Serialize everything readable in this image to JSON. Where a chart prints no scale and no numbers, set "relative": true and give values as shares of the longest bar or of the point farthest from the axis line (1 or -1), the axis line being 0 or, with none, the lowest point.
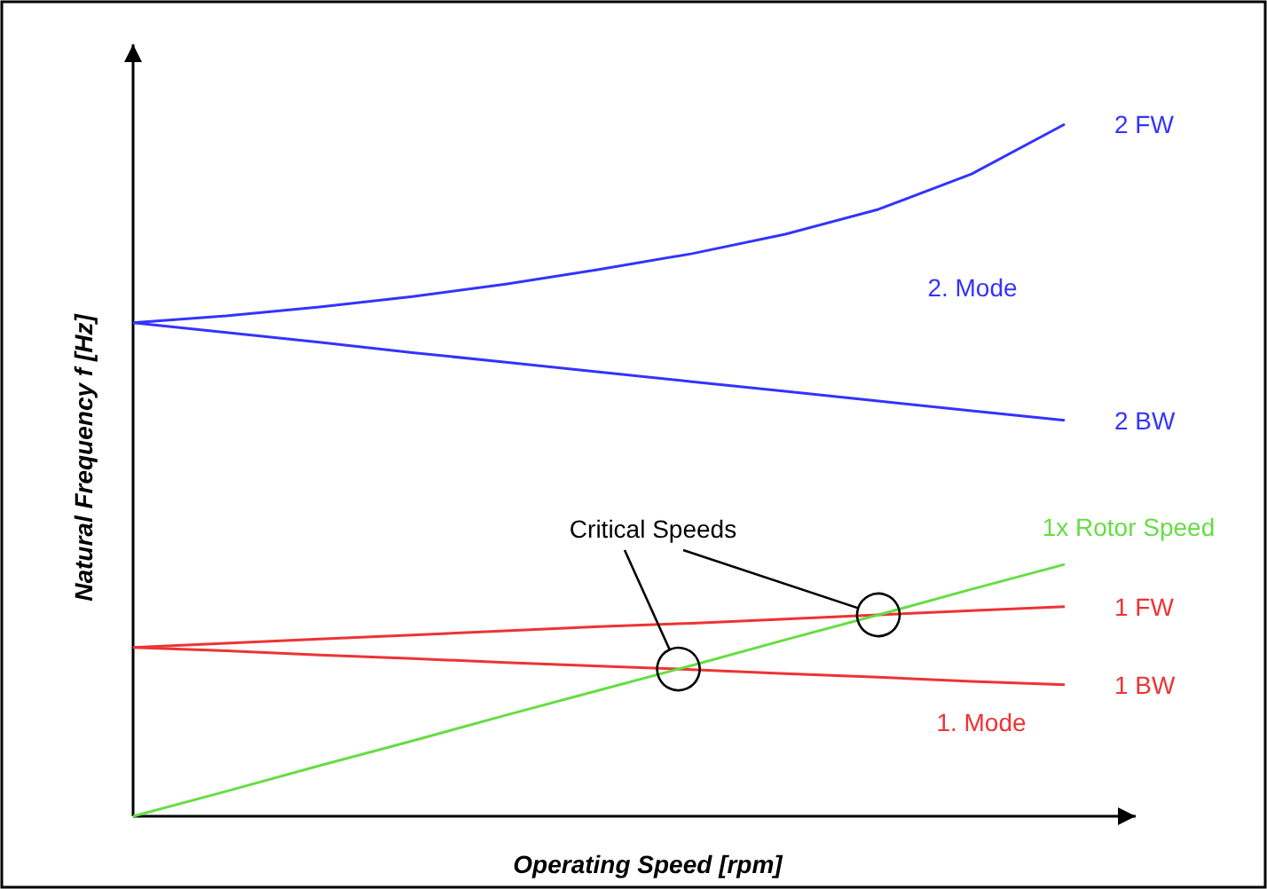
{
  "chart_data": {
    "type": "line",
    "relative": true,
    "xlabel": "Operating Speed  [rpm]",
    "ylabel": "Natural Frequency f  [Hz]",
    "categories": [
      null,
      null,
      null,
      null,
      null,
      null,
      null,
      null,
      null,
      null,
      null
    ],
    "marker": "none",
    "line_style": "solid",
    "series": [
      {
        "name": "2 FW",
        "color": "#3333ff",
        "values": [
          0.713,
          0.723,
          0.736,
          0.751,
          0.769,
          0.79,
          0.813,
          0.841,
          0.877,
          0.928,
          1
        ]
      },
      {
        "name": "2 BW",
        "color": "#3333ff",
        "values": [
          0.713,
          0.699,
          0.685,
          0.67,
          0.656,
          0.642,
          0.628,
          0.614,
          0.6,
          0.586,
          0.572
        ]
      },
      {
        "name": "1 FW",
        "color": "#ee3333",
        "values": [
          0.244,
          0.25,
          0.256,
          0.262,
          0.268,
          0.274,
          0.279,
          0.285,
          0.291,
          0.297,
          0.303
        ]
      },
      {
        "name": "1 BW",
        "color": "#ee3333",
        "values": [
          0.244,
          0.239,
          0.233,
          0.228,
          0.222,
          0.217,
          0.212,
          0.206,
          0.201,
          0.195,
          0.19
        ]
      },
      {
        "name": "1x Rotor Speed",
        "color": "#66dd44",
        "values": [
          0,
          0.036,
          0.073,
          0.109,
          0.146,
          0.182,
          0.218,
          0.255,
          0.291,
          0.328,
          0.364
        ]
      }
    ],
    "annotations": [
      "2. Mode",
      "1. Mode",
      "Critical Speeds"
    ]
  }
}
